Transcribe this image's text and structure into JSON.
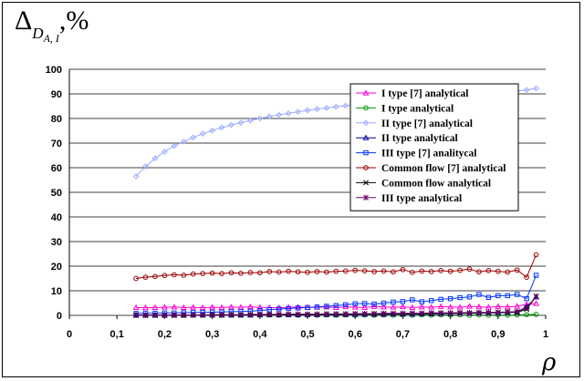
{
  "chart_data": {
    "type": "line",
    "ylabel_symbol": "Δ",
    "ylabel_subscript": "D",
    "ylabel_subscript2": "A, I",
    "ylabel_unit": ",%",
    "xlabel": "ρ",
    "xlim": [
      0,
      1
    ],
    "ylim": [
      0,
      100
    ],
    "x_ticks": [
      "0",
      "0,1",
      "0,2",
      "0,3",
      "0,4",
      "0,5",
      "0,6",
      "0,7",
      "0,8",
      "0,9",
      "1"
    ],
    "y_ticks": [
      "0",
      "10",
      "20",
      "30",
      "40",
      "50",
      "60",
      "70",
      "80",
      "90",
      "100"
    ],
    "grid": "horizontal",
    "legend_position": "top-right",
    "x": [
      0.14,
      0.16,
      0.18,
      0.2,
      0.22,
      0.24,
      0.26,
      0.28,
      0.3,
      0.32,
      0.34,
      0.36,
      0.38,
      0.4,
      0.42,
      0.44,
      0.46,
      0.48,
      0.5,
      0.52,
      0.54,
      0.56,
      0.58,
      0.6,
      0.62,
      0.64,
      0.66,
      0.68,
      0.7,
      0.72,
      0.74,
      0.76,
      0.78,
      0.8,
      0.82,
      0.84,
      0.86,
      0.88,
      0.9,
      0.92,
      0.94,
      0.96,
      0.98
    ],
    "series": [
      {
        "name": "I type [7] analytical",
        "color": "#ff00cc",
        "marker": "triangle",
        "values": [
          3.2,
          3.1,
          3.2,
          3.3,
          3.4,
          3.2,
          3.3,
          3.1,
          3.3,
          3.2,
          3.4,
          3.3,
          3.5,
          3.3,
          3.2,
          3.1,
          3.3,
          3.4,
          3.2,
          3.3,
          3.4,
          3.2,
          3.5,
          3.3,
          3.2,
          3.6,
          3.4,
          3.3,
          3.5,
          3.2,
          3.4,
          3.3,
          3.6,
          3.4,
          3.3,
          3.7,
          3.5,
          3.3,
          3.6,
          3.4,
          3.7,
          4.5,
          4.8
        ]
      },
      {
        "name": "I type analytical",
        "color": "#009900",
        "marker": "circle",
        "values": [
          0.2,
          0.1,
          0.2,
          0.1,
          0.2,
          0.1,
          0.2,
          0.1,
          0.2,
          0.1,
          0.2,
          0.1,
          0.2,
          0.1,
          0.2,
          0.1,
          0.2,
          0.1,
          0.2,
          0.1,
          0.2,
          0.1,
          0.2,
          0.1,
          0.2,
          0.1,
          0.2,
          0.1,
          0.2,
          0.1,
          0.2,
          0.1,
          0.2,
          0.1,
          0.2,
          0.1,
          0.2,
          0.1,
          0.2,
          0.1,
          0.2,
          0.3,
          0.4
        ]
      },
      {
        "name": "II type [7] analytical",
        "color": "#99aaff",
        "marker": "diamond",
        "values": [
          56.5,
          60.5,
          63.8,
          66.5,
          68.8,
          70.6,
          72.3,
          73.8,
          75.1,
          76.3,
          77.4,
          78.3,
          79.2,
          80.0,
          80.8,
          81.5,
          82.1,
          82.7,
          83.3,
          83.8,
          84.3,
          84.8,
          85.2,
          85.6,
          86.0,
          86.4,
          86.8,
          87.1,
          87.5,
          87.8,
          88.1,
          88.5,
          88.8,
          89.1,
          89.4,
          89.7,
          90.0,
          90.3,
          90.6,
          90.9,
          91.2,
          91.6,
          92.3
        ]
      },
      {
        "name": "II type analytical",
        "color": "#000099",
        "marker": "triangle",
        "values": [
          0.1,
          0.1,
          0.1,
          0.1,
          0.1,
          0.1,
          0.1,
          0.1,
          0.1,
          0.1,
          0.1,
          0.1,
          0.1,
          0.2,
          0.2,
          0.2,
          0.2,
          0.2,
          0.2,
          0.3,
          0.3,
          0.3,
          0.3,
          0.3,
          0.4,
          0.4,
          0.4,
          0.5,
          0.5,
          0.5,
          0.6,
          0.6,
          0.7,
          0.7,
          0.8,
          0.8,
          0.9,
          1.0,
          1.0,
          1.2,
          1.4,
          3.5,
          7.5
        ]
      },
      {
        "name": "III type [7] analitycal",
        "color": "#0033ff",
        "marker": "square",
        "values": [
          0.8,
          0.9,
          0.9,
          1.0,
          1.0,
          1.1,
          1.2,
          1.2,
          1.3,
          1.4,
          1.5,
          1.6,
          1.7,
          2.0,
          2.3,
          2.6,
          2.8,
          3.0,
          3.2,
          3.4,
          3.7,
          4.0,
          4.3,
          4.7,
          4.8,
          4.6,
          5.0,
          5.4,
          5.6,
          6.3,
          5.5,
          6.0,
          6.5,
          6.8,
          7.2,
          7.5,
          8.5,
          7.3,
          8.0,
          8.0,
          8.5,
          6.8,
          16.3
        ]
      },
      {
        "name": "Common flow [7] analytical",
        "color": "#990000",
        "marker": "circle",
        "values": [
          15.0,
          15.5,
          15.8,
          16.2,
          16.5,
          16.3,
          16.8,
          17.0,
          17.2,
          17.0,
          17.3,
          17.1,
          17.4,
          17.3,
          17.8,
          17.6,
          17.9,
          17.7,
          17.5,
          17.8,
          17.6,
          17.9,
          18.0,
          18.3,
          18.1,
          17.8,
          18.0,
          17.7,
          18.6,
          17.5,
          18.0,
          17.8,
          18.2,
          17.9,
          18.3,
          18.8,
          17.7,
          18.2,
          17.9,
          17.6,
          18.4,
          15.5,
          24.6
        ]
      },
      {
        "name": "Common flow analytical",
        "color": "#000000",
        "marker": "x",
        "values": [
          0.0,
          0.0,
          0.0,
          0.0,
          0.0,
          0.0,
          0.1,
          0.1,
          0.1,
          0.1,
          0.1,
          0.1,
          0.2,
          0.2,
          0.2,
          0.2,
          0.3,
          0.3,
          0.3,
          0.3,
          0.4,
          0.4,
          0.4,
          0.5,
          0.5,
          0.5,
          0.6,
          0.6,
          0.6,
          0.7,
          0.7,
          0.7,
          0.8,
          0.8,
          0.9,
          0.9,
          1.0,
          1.0,
          1.1,
          1.2,
          1.2,
          2.5,
          7.8
        ]
      },
      {
        "name": "III type analytical",
        "color": "#660066",
        "marker": "star",
        "values": [
          0.1,
          0.1,
          0.1,
          0.1,
          0.2,
          0.2,
          0.2,
          0.2,
          0.3,
          0.3,
          0.3,
          0.3,
          0.4,
          0.4,
          0.4,
          0.4,
          0.5,
          0.5,
          0.5,
          0.5,
          0.6,
          0.6,
          0.6,
          0.7,
          0.7,
          0.7,
          0.8,
          0.8,
          0.8,
          0.9,
          0.9,
          1.0,
          1.0,
          1.0,
          1.1,
          1.1,
          1.2,
          1.2,
          1.3,
          1.4,
          1.5,
          3.0,
          7.6
        ]
      }
    ]
  }
}
